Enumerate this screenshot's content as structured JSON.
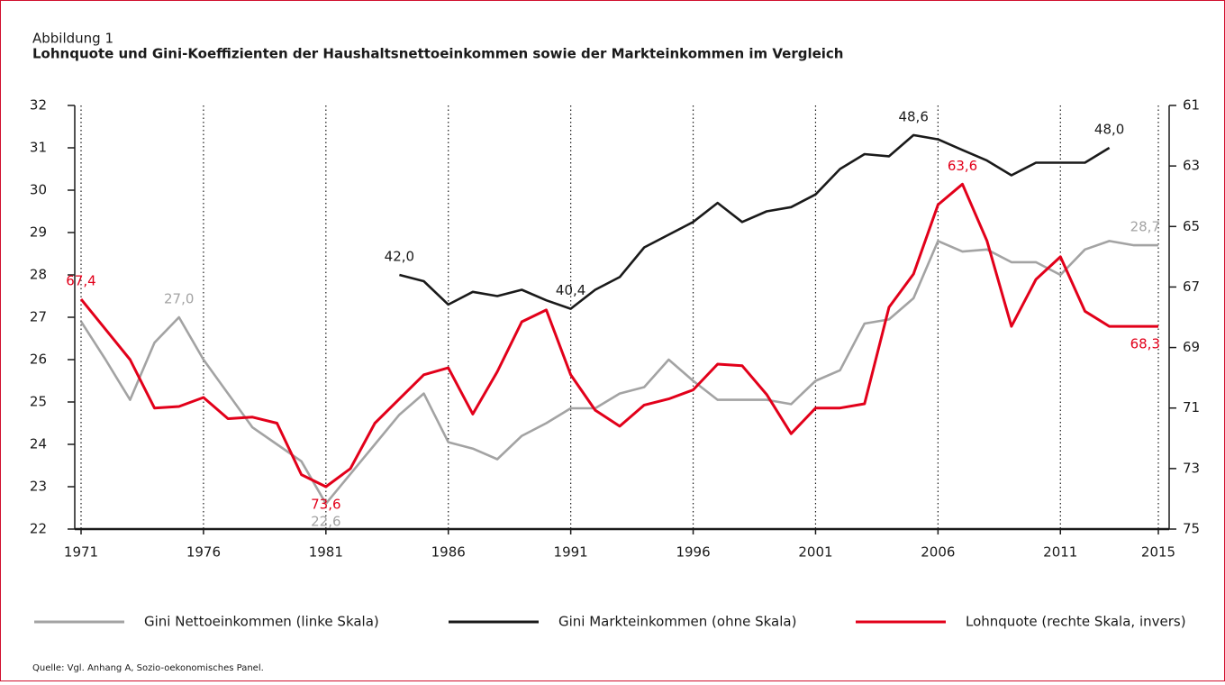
{
  "chart_data": {
    "type": "line",
    "label": "Abbildung 1",
    "title": "Lohnquote und Gini-Koeffizienten der Haushaltsnettoeinkommen sowie der Markteinkommen im Vergleich",
    "source": "Quelle: Vgl. Anhang A, Sozio-oekonomisches Panel.",
    "x": [
      1971,
      1972,
      1973,
      1974,
      1975,
      1976,
      1977,
      1978,
      1979,
      1980,
      1981,
      1982,
      1983,
      1984,
      1985,
      1986,
      1987,
      1988,
      1989,
      1990,
      1991,
      1992,
      1993,
      1994,
      1995,
      1996,
      1997,
      1998,
      1999,
      2000,
      2001,
      2002,
      2003,
      2004,
      2005,
      2006,
      2007,
      2008,
      2009,
      2010,
      2011,
      2012,
      2013,
      2014,
      2015
    ],
    "xlim": [
      1971,
      2015
    ],
    "xticks": [
      1971,
      1976,
      1981,
      1986,
      1991,
      1996,
      2001,
      2006,
      2011,
      2015
    ],
    "ylim": [
      22,
      32
    ],
    "yticks": [
      22,
      23,
      24,
      25,
      26,
      27,
      28,
      29,
      30,
      31,
      32
    ],
    "y2lim": [
      61,
      75
    ],
    "y2_inverted": true,
    "y2ticks": [
      61,
      63,
      65,
      67,
      69,
      71,
      73,
      75
    ],
    "y3lim": [
      30,
      50
    ],
    "grid": "x",
    "series": [
      {
        "name": "Gini Nettoeinkommen (linke Skala)",
        "color": "#a3a3a3",
        "axis": "y",
        "values": [
          26.9,
          26.0,
          25.05,
          26.4,
          27.0,
          26.0,
          25.2,
          24.4,
          24.0,
          23.6,
          22.6,
          23.3,
          24.0,
          24.7,
          25.2,
          24.05,
          23.9,
          23.65,
          24.2,
          24.5,
          24.85,
          24.85,
          25.2,
          25.35,
          26.0,
          25.5,
          25.05,
          25.05,
          25.05,
          24.95,
          25.5,
          25.75,
          26.85,
          26.95,
          27.45,
          28.8,
          28.55,
          28.6,
          28.3,
          28.3,
          28.0,
          28.6,
          28.8,
          28.7,
          28.7
        ],
        "value_labels": [
          null,
          null,
          null,
          null,
          "27,0",
          null,
          null,
          null,
          null,
          null,
          "22,6",
          null,
          null,
          null,
          null,
          null,
          null,
          null,
          null,
          null,
          null,
          null,
          null,
          null,
          null,
          null,
          null,
          null,
          null,
          null,
          null,
          null,
          null,
          null,
          null,
          null,
          null,
          null,
          null,
          null,
          null,
          null,
          null,
          null,
          "28,7"
        ]
      },
      {
        "name": "Gini Markteinkommen (ohne Skala)",
        "color": "#1a1a1a",
        "axis": "y3",
        "values": [
          null,
          null,
          null,
          null,
          null,
          null,
          null,
          null,
          null,
          null,
          null,
          null,
          null,
          42.0,
          41.7,
          40.6,
          41.2,
          41.0,
          41.3,
          40.8,
          40.4,
          41.3,
          41.9,
          43.3,
          43.9,
          44.5,
          45.4,
          44.5,
          45.0,
          45.2,
          45.8,
          47.0,
          47.7,
          47.6,
          48.6,
          48.4,
          47.9,
          47.4,
          46.7,
          47.3,
          47.3,
          47.3,
          48.0,
          null,
          null
        ],
        "value_labels": [
          null,
          null,
          null,
          null,
          null,
          null,
          null,
          null,
          null,
          null,
          null,
          null,
          null,
          "42,0",
          null,
          null,
          null,
          null,
          null,
          null,
          "40,4",
          null,
          null,
          null,
          null,
          null,
          null,
          null,
          null,
          null,
          null,
          null,
          null,
          null,
          "48,6",
          null,
          null,
          null,
          null,
          null,
          null,
          null,
          "48,0",
          null,
          null
        ]
      },
      {
        "name": "Lohnquote (rechte Skala, invers)",
        "color": "#e2001a",
        "axis": "y2",
        "values": [
          67.4,
          68.4,
          69.4,
          71.0,
          70.95,
          70.65,
          71.35,
          71.3,
          71.5,
          73.2,
          73.6,
          73.0,
          71.5,
          70.7,
          69.9,
          69.67,
          71.2,
          69.8,
          68.15,
          67.76,
          69.9,
          71.07,
          71.6,
          70.9,
          70.7,
          70.4,
          69.55,
          69.6,
          70.55,
          71.85,
          71.0,
          71.0,
          70.86,
          67.67,
          66.57,
          64.28,
          63.6,
          65.47,
          68.3,
          66.75,
          66.0,
          67.8,
          68.3,
          68.3,
          68.3
        ],
        "value_labels": [
          "67,4",
          null,
          null,
          null,
          null,
          null,
          null,
          null,
          null,
          null,
          "73,6",
          null,
          null,
          null,
          null,
          null,
          null,
          null,
          null,
          null,
          null,
          null,
          null,
          null,
          null,
          null,
          null,
          null,
          null,
          null,
          null,
          null,
          null,
          null,
          null,
          null,
          "63,6",
          null,
          null,
          null,
          null,
          null,
          null,
          null,
          "68,3"
        ]
      }
    ]
  }
}
